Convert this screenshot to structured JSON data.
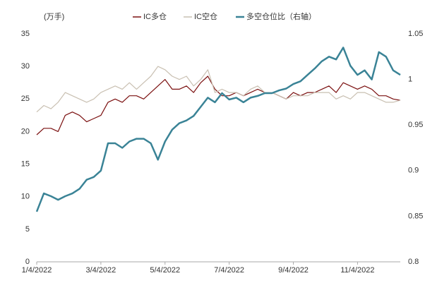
{
  "chart_data": {
    "type": "line",
    "y_label": "(万手)",
    "categories": [
      "1/4/2022",
      null,
      null,
      null,
      null,
      null,
      null,
      null,
      null,
      "3/4/2022",
      null,
      null,
      null,
      null,
      null,
      null,
      null,
      null,
      "5/4/2022",
      null,
      null,
      null,
      null,
      null,
      null,
      null,
      null,
      "7/4/2022",
      null,
      null,
      null,
      null,
      null,
      null,
      null,
      null,
      "9/4/2022",
      null,
      null,
      null,
      null,
      null,
      null,
      null,
      null,
      "11/4/2022",
      null,
      null,
      null,
      null,
      null,
      null
    ],
    "series": [
      {
        "name": "IC多仓",
        "color": "#7b1010",
        "values": [
          19.5,
          20.5,
          20.5,
          20,
          22.5,
          23,
          22.5,
          21.5,
          22,
          22.5,
          24.5,
          25,
          24.5,
          25.5,
          25.5,
          25,
          26,
          27,
          28,
          26.5,
          26.5,
          27,
          26,
          27.5,
          28.5,
          26.5,
          25.5,
          25.5,
          26,
          25.5,
          26,
          26.5,
          26,
          26,
          25.5,
          25,
          26,
          25.5,
          26,
          26,
          26.5,
          27,
          26,
          27.5,
          27,
          26.5,
          27,
          26.5,
          25.5,
          25.5,
          25,
          24.8
        ]
      },
      {
        "name": "IC空仓",
        "color": "#c9c0b2",
        "values": [
          23,
          24,
          23.5,
          24.5,
          26,
          25.5,
          25,
          24.5,
          25,
          26,
          26.5,
          27,
          26.5,
          27.5,
          26.5,
          27.5,
          28.5,
          30,
          29.5,
          28.5,
          28,
          28.5,
          27,
          28,
          29.5,
          26,
          26.5,
          26,
          26,
          25.5,
          26.5,
          27,
          26,
          26,
          25.5,
          25,
          25.5,
          25.5,
          25.5,
          26,
          26,
          26,
          25,
          25.5,
          25,
          26,
          26,
          25.5,
          25,
          24.5,
          24.5,
          24.8
        ]
      },
      {
        "name": "多空仓位比（右轴）",
        "color": "#3a8396",
        "axis": "y2",
        "values": [
          0.855,
          0.875,
          0.872,
          0.868,
          0.872,
          0.875,
          0.88,
          0.89,
          0.893,
          0.9,
          0.93,
          0.93,
          0.925,
          0.932,
          0.935,
          0.935,
          0.93,
          0.912,
          0.932,
          0.945,
          0.952,
          0.955,
          0.96,
          0.97,
          0.98,
          0.975,
          0.985,
          0.978,
          0.98,
          0.975,
          0.98,
          0.982,
          0.985,
          0.985,
          0.988,
          0.99,
          0.995,
          0.998,
          1.005,
          1.012,
          1.02,
          1.025,
          1.022,
          1.035,
          1.015,
          1.005,
          1.01,
          1.0,
          1.03,
          1.025,
          1.01,
          1.005
        ]
      }
    ],
    "ylim": [
      0,
      35
    ],
    "yticks": [
      0,
      5,
      10,
      15,
      20,
      25,
      30,
      35
    ],
    "y2lim": [
      0.8,
      1.05
    ],
    "y2ticks": [
      0.8,
      0.85,
      0.9,
      0.95,
      1,
      1.05
    ],
    "legend": "top"
  }
}
